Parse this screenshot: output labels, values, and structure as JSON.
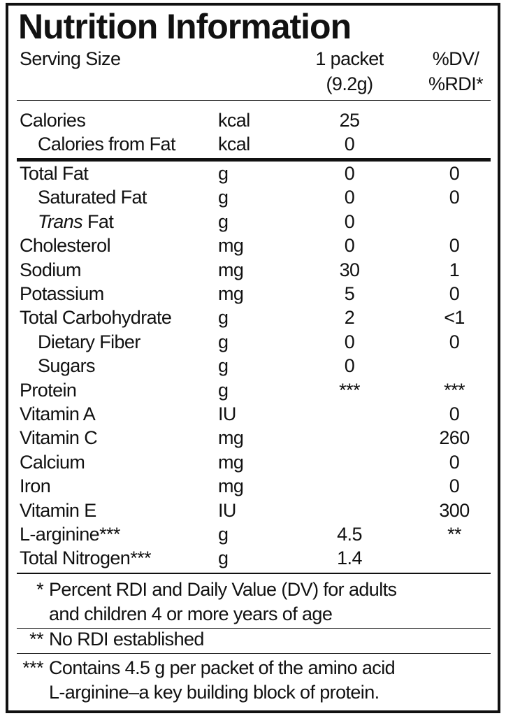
{
  "title": "Nutrition Information",
  "header": {
    "label": "Serving Size",
    "amount_lines": [
      "1 packet",
      "(9.2g)"
    ],
    "dv_lines": [
      "%DV/",
      "%RDI*"
    ]
  },
  "energy": [
    {
      "name": "Calories",
      "unit": "kcal",
      "amount": "25",
      "sub": [
        {
          "name": "Calories from Fat",
          "unit": "kcal",
          "amount": "0"
        }
      ]
    }
  ],
  "nutrients": [
    {
      "name": "Total Fat",
      "unit": "g",
      "amount": "0",
      "dv": "0",
      "sub": [
        {
          "name": "Saturated Fat",
          "unit": "g",
          "amount": "0",
          "dv": "0"
        },
        {
          "name_italic": "Trans",
          "name": "Fat",
          "unit": "g",
          "amount": "0"
        }
      ]
    },
    {
      "name": "Cholesterol",
      "unit": "mg",
      "amount": "0",
      "dv": "0"
    },
    {
      "name": "Sodium",
      "unit": "mg",
      "amount": "30",
      "dv": "1"
    },
    {
      "name": "Potassium",
      "unit": "mg",
      "amount": "5",
      "dv": "0"
    },
    {
      "name": "Total Carbohydrate",
      "unit": "g",
      "amount": "2",
      "dv": "<1",
      "sub": [
        {
          "name": "Dietary Fiber",
          "unit": "g",
          "amount": "0",
          "dv": "0"
        },
        {
          "name": "Sugars",
          "unit": "g",
          "amount": "0"
        }
      ]
    },
    {
      "name": "Protein",
      "unit": "g",
      "amount": "***",
      "dv": "***"
    },
    {
      "name": "Vitamin A",
      "unit": "IU",
      "dv": "0"
    },
    {
      "name": "Vitamin C",
      "unit": "mg",
      "dv": "260"
    },
    {
      "name": "Calcium",
      "unit": "mg",
      "dv": "0"
    },
    {
      "name": "Iron",
      "unit": "mg",
      "dv": "0"
    },
    {
      "name": "Vitamin E",
      "unit": "IU",
      "dv": "300"
    },
    {
      "name": "L-arginine***",
      "unit": "g",
      "amount": "4.5",
      "dv": "**"
    },
    {
      "name": "Total Nitrogen***",
      "unit": "g",
      "amount": "1.4"
    }
  ],
  "footnotes": [
    {
      "mark": "*",
      "lines": [
        "Percent RDI and Daily Value (DV) for adults",
        "and children 4 or more years of age"
      ]
    },
    {
      "mark": "**",
      "lines": [
        "No RDI established"
      ]
    },
    {
      "mark": "***",
      "lines": [
        "Contains 4.5 g per packet of the amino acid",
        "L-arginine–a key building block of protein."
      ]
    }
  ]
}
